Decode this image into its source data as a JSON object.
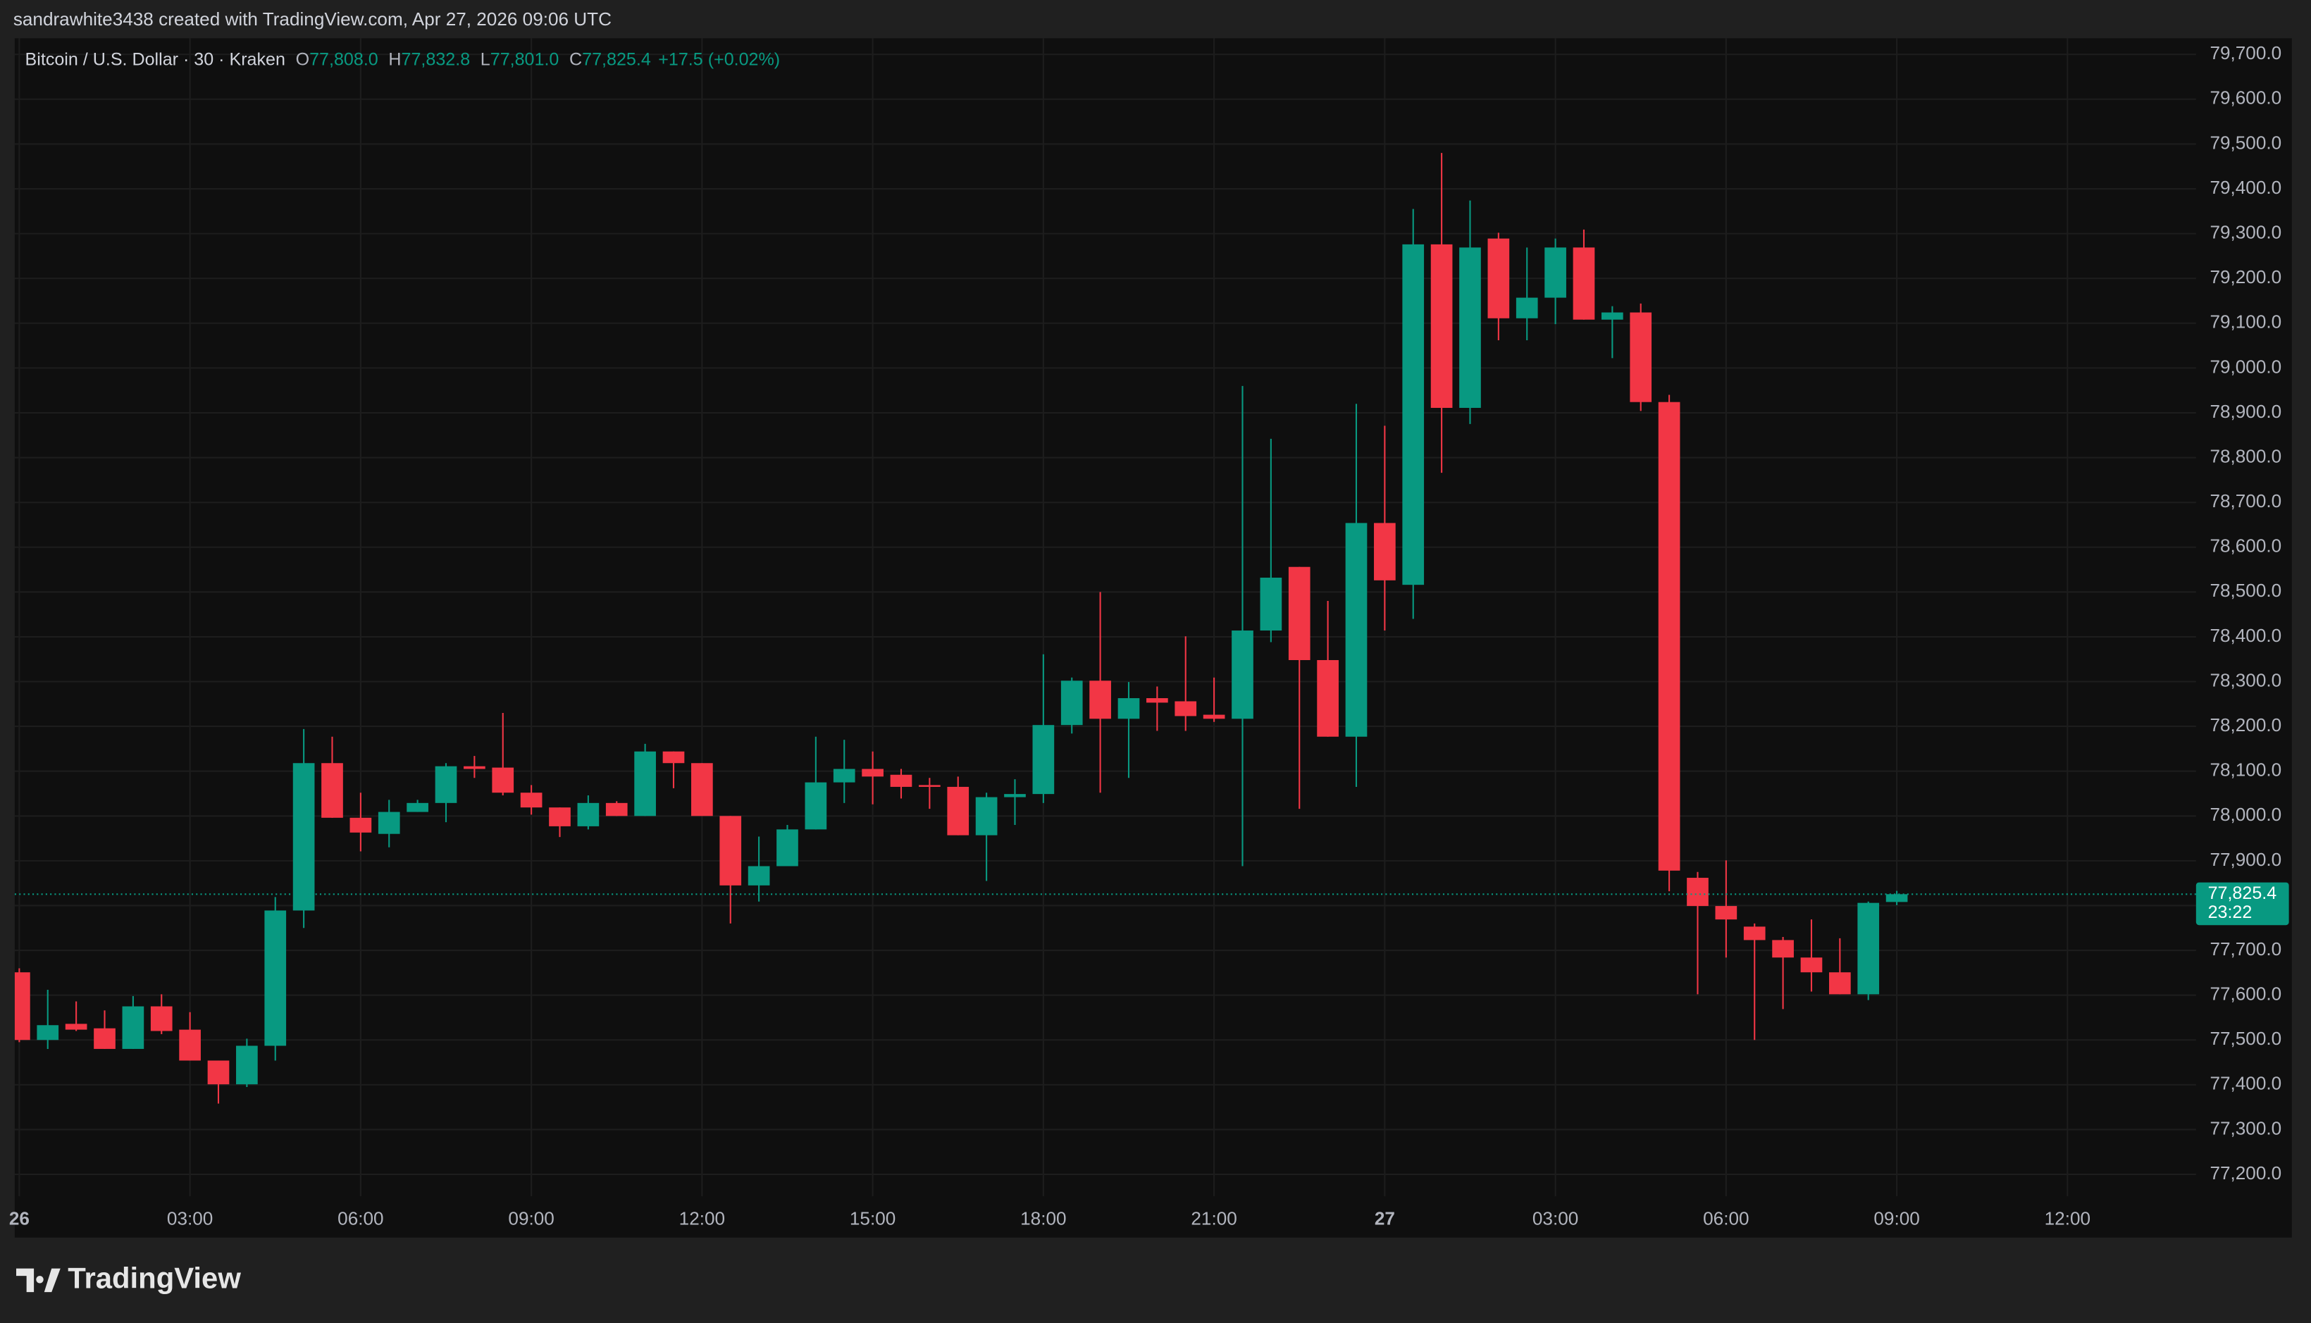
{
  "header": {
    "attribution": "sandrawhite3438 created with TradingView.com, Apr 27, 2026 09:06 UTC"
  },
  "footer": {
    "brand": "TradingView"
  },
  "chart_data": {
    "type": "candlestick",
    "title": "Bitcoin / U.S. Dollar · 30 · Kraken",
    "ohlc": [
      {
        "key": "O",
        "value": "77,808.0"
      },
      {
        "key": "H",
        "value": "77,832.8"
      },
      {
        "key": "L",
        "value": "77,801.0"
      },
      {
        "key": "C",
        "value": "77,825.4"
      }
    ],
    "change": "+17.5 (+0.02%)",
    "up_color": "#089981",
    "down_color": "#f23645",
    "grid": true,
    "x": [
      0,
      0.5,
      1,
      1.5,
      2,
      2.5,
      3,
      3.5,
      4,
      4.5,
      5,
      5.5,
      6,
      6.5,
      7,
      7.5,
      8,
      8.5,
      9,
      9.5,
      10,
      10.5,
      11,
      11.5,
      12,
      12.5,
      13,
      13.5,
      14,
      14.5,
      15,
      15.5,
      16,
      16.5,
      17,
      17.5,
      18,
      18.5,
      19,
      19.5,
      20,
      20.5,
      21,
      21.5,
      22,
      22.5,
      23,
      23.5,
      24,
      24.5,
      25,
      25.5,
      26,
      26.5,
      27,
      27.5,
      28,
      28.5,
      29,
      29.5,
      30,
      30.5,
      31,
      31.5,
      32,
      32.5,
      33
    ],
    "open": [
      77651,
      77500,
      77536,
      77526,
      77480,
      77575,
      77523,
      77454,
      77401,
      77487,
      77789,
      78118,
      77996,
      77960,
      78009,
      78029,
      78111,
      78108,
      78052,
      78019,
      77977,
      78029,
      78000,
      78144,
      78118,
      78000,
      77845,
      77888,
      77970,
      78075,
      78105,
      78092,
      78069,
      78065,
      77957,
      78042,
      78049,
      78203,
      78302,
      78217,
      78263,
      78256,
      78226,
      78217,
      78414,
      78556,
      78348,
      78177,
      78654,
      78516,
      79276,
      78911,
      79289,
      79111,
      79157,
      79269,
      79108,
      79124,
      78924,
      77862,
      77799,
      77753,
      77723,
      77684,
      77651,
      77602,
      77808
    ],
    "high": [
      77660,
      77612,
      77586,
      77566,
      77598,
      77602,
      77562,
      77454,
      77503,
      77819,
      78194,
      78177,
      78052,
      78036,
      78036,
      78118,
      78134,
      78230,
      78069,
      78019,
      78046,
      78033,
      78161,
      78144,
      78118,
      78000,
      77954,
      77980,
      78177,
      78170,
      78144,
      78105,
      78085,
      78088,
      78052,
      78082,
      78361,
      78309,
      78500,
      78299,
      78289,
      78401,
      78309,
      78960,
      78842,
      78556,
      78480,
      78920,
      78871,
      79355,
      79480,
      79374,
      79302,
      79269,
      79289,
      79309,
      79138,
      79144,
      78940,
      77875,
      77901,
      77760,
      77730,
      77769,
      77727,
      77809,
      77832.8
    ],
    "low": [
      77495,
      77480,
      77520,
      77480,
      77480,
      77513,
      77454,
      77358,
      77395,
      77454,
      77750,
      77996,
      77921,
      77930,
      78009,
      77986,
      78085,
      78046,
      78003,
      77953,
      77970,
      78000,
      78000,
      78062,
      78000,
      77760,
      77809,
      77888,
      77970,
      78029,
      78026,
      78039,
      78016,
      77957,
      77855,
      77980,
      78029,
      78184,
      78052,
      78085,
      78190,
      78190,
      78210,
      77888,
      78388,
      78016,
      78177,
      78065,
      78414,
      78440,
      78766,
      78875,
      79062,
      79062,
      79098,
      79108,
      79022,
      78904,
      77832,
      77602,
      77684,
      77500,
      77569,
      77608,
      77602,
      77589,
      77801.0
    ],
    "close": [
      77500,
      77533,
      77523,
      77480,
      77575,
      77520,
      77454,
      77401,
      77487,
      77789,
      78118,
      77996,
      77963,
      78009,
      78029,
      78111,
      78105,
      78052,
      78019,
      77977,
      78029,
      78000,
      78144,
      78118,
      78000,
      77845,
      77888,
      77970,
      78075,
      78105,
      78088,
      78065,
      78065,
      77957,
      78042,
      78049,
      78203,
      78302,
      78217,
      78263,
      78253,
      78223,
      78217,
      78414,
      78532,
      78348,
      78177,
      78654,
      78526,
      79276,
      78911,
      79269,
      79111,
      79157,
      79269,
      79108,
      79124,
      78924,
      77878,
      77799,
      77769,
      77723,
      77684,
      77651,
      77602,
      77806,
      77825.4
    ],
    "xlim": [
      -0.08,
      38.26
    ],
    "ylim": [
      77151,
      79736
    ],
    "xticks": [
      {
        "value": 0,
        "label": "26"
      },
      {
        "value": 3,
        "label": "03:00"
      },
      {
        "value": 6,
        "label": "06:00"
      },
      {
        "value": 9,
        "label": "09:00"
      },
      {
        "value": 12,
        "label": "12:00"
      },
      {
        "value": 15,
        "label": "15:00"
      },
      {
        "value": 18,
        "label": "18:00"
      },
      {
        "value": 21,
        "label": "21:00"
      },
      {
        "value": 24,
        "label": "27"
      },
      {
        "value": 27,
        "label": "03:00"
      },
      {
        "value": 30,
        "label": "06:00"
      },
      {
        "value": 33,
        "label": "09:00"
      },
      {
        "value": 36,
        "label": "12:00"
      }
    ],
    "yticks": [
      {
        "value": 77200,
        "label": "77,200.0"
      },
      {
        "value": 77300,
        "label": "77,300.0"
      },
      {
        "value": 77400,
        "label": "77,400.0"
      },
      {
        "value": 77500,
        "label": "77,500.0"
      },
      {
        "value": 77600,
        "label": "77,600.0"
      },
      {
        "value": 77700,
        "label": "77,700.0"
      },
      {
        "value": 77800,
        "label": "77,800.0"
      },
      {
        "value": 77900,
        "label": "77,900.0"
      },
      {
        "value": 78000,
        "label": "78,000.0"
      },
      {
        "value": 78100,
        "label": "78,100.0"
      },
      {
        "value": 78200,
        "label": "78,200.0"
      },
      {
        "value": 78300,
        "label": "78,300.0"
      },
      {
        "value": 78400,
        "label": "78,400.0"
      },
      {
        "value": 78500,
        "label": "78,500.0"
      },
      {
        "value": 78600,
        "label": "78,600.0"
      },
      {
        "value": 78700,
        "label": "78,700.0"
      },
      {
        "value": 78800,
        "label": "78,800.0"
      },
      {
        "value": 78900,
        "label": "78,900.0"
      },
      {
        "value": 79000,
        "label": "79,000.0"
      },
      {
        "value": 79100,
        "label": "79,100.0"
      },
      {
        "value": 79200,
        "label": "79,200.0"
      },
      {
        "value": 79300,
        "label": "79,300.0"
      },
      {
        "value": 79400,
        "label": "79,400.0"
      },
      {
        "value": 79500,
        "label": "79,500.0"
      },
      {
        "value": 79600,
        "label": "79,600.0"
      },
      {
        "value": 79700,
        "label": "79,700.0"
      }
    ],
    "last_price": {
      "value": 77825.4,
      "label": "77,825.4"
    },
    "countdown": "23:22"
  }
}
